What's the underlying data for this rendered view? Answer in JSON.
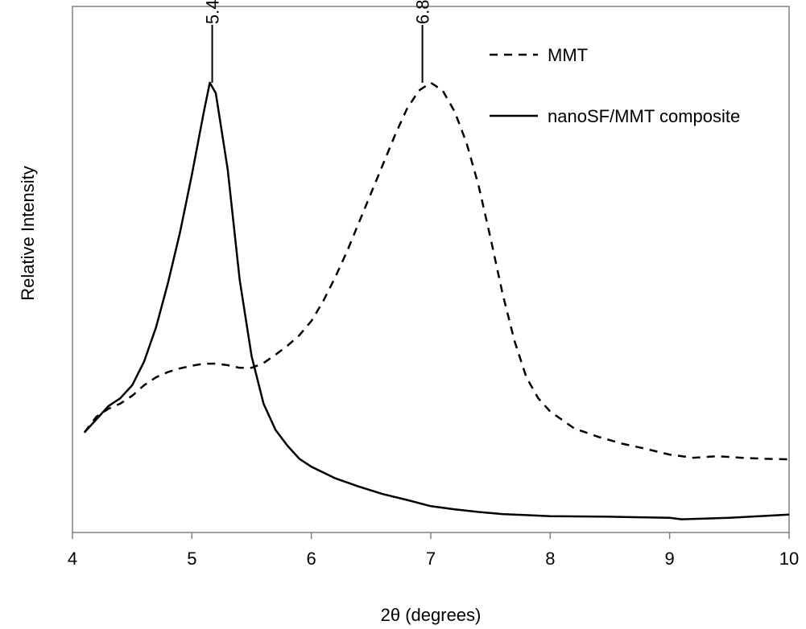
{
  "chart_data": {
    "type": "line",
    "title": "",
    "xlabel": "2θ (degrees)",
    "ylabel": "Relative Intensity",
    "xlim": [
      4,
      10
    ],
    "ylim": [
      0,
      100
    ],
    "xticks": [
      "4",
      "5",
      "6",
      "7",
      "8",
      "9",
      "10"
    ],
    "yticks_shown": false,
    "grid": false,
    "legend_position": "top-right",
    "series": [
      {
        "name": "MMT",
        "style": "dashed",
        "color": "#000000",
        "x": [
          4.1,
          4.2,
          4.3,
          4.4,
          4.5,
          4.6,
          4.7,
          4.8,
          4.9,
          5.0,
          5.1,
          5.2,
          5.3,
          5.4,
          5.5,
          5.6,
          5.7,
          5.8,
          5.9,
          6.0,
          6.1,
          6.2,
          6.3,
          6.4,
          6.5,
          6.6,
          6.7,
          6.8,
          6.9,
          7.0,
          7.1,
          7.2,
          7.3,
          7.4,
          7.5,
          7.6,
          7.7,
          7.8,
          7.9,
          8.0,
          8.2,
          8.4,
          8.6,
          8.8,
          9.0,
          9.2,
          9.4,
          9.6,
          9.8,
          10.0
        ],
        "y": [
          19,
          22,
          23.5,
          24.5,
          26,
          28,
          29.5,
          30.5,
          31.2,
          31.7,
          32.1,
          32.1,
          31.8,
          31.3,
          31.3,
          32.2,
          33.8,
          35.5,
          37.5,
          40.2,
          44,
          48.5,
          53.5,
          59,
          64.5,
          70,
          75.5,
          80.5,
          84,
          85.5,
          84,
          80,
          74,
          66,
          56,
          45.5,
          36.5,
          29.5,
          25.5,
          23,
          19.8,
          18.2,
          16.9,
          15.9,
          14.8,
          14.2,
          14.5,
          14.2,
          14.0,
          13.9
        ]
      },
      {
        "name": "nanoSF/MMT composite",
        "style": "solid",
        "color": "#000000",
        "x": [
          4.1,
          4.2,
          4.3,
          4.4,
          4.5,
          4.6,
          4.7,
          4.8,
          4.9,
          5.0,
          5.1,
          5.15,
          5.2,
          5.3,
          5.4,
          5.5,
          5.6,
          5.7,
          5.8,
          5.9,
          6.0,
          6.2,
          6.4,
          6.6,
          6.8,
          7.0,
          7.2,
          7.4,
          7.6,
          7.8,
          8.0,
          8.5,
          9.0,
          9.1,
          9.5,
          10.0
        ],
        "y": [
          19,
          21.5,
          24,
          25.5,
          28,
          32.5,
          39,
          47.5,
          57,
          68,
          80,
          85.5,
          83.5,
          69,
          48,
          33.5,
          24.5,
          19.5,
          16.5,
          14,
          12.5,
          10.3,
          8.7,
          7.3,
          6.2,
          5.0,
          4.4,
          3.9,
          3.5,
          3.3,
          3.1,
          3.0,
          2.8,
          2.5,
          2.8,
          3.4
        ]
      }
    ],
    "annotations": [
      {
        "text": "5.4",
        "x": 5.17,
        "y": 85.5
      },
      {
        "text": "6.8",
        "x": 6.93,
        "y": 85.5
      }
    ]
  }
}
